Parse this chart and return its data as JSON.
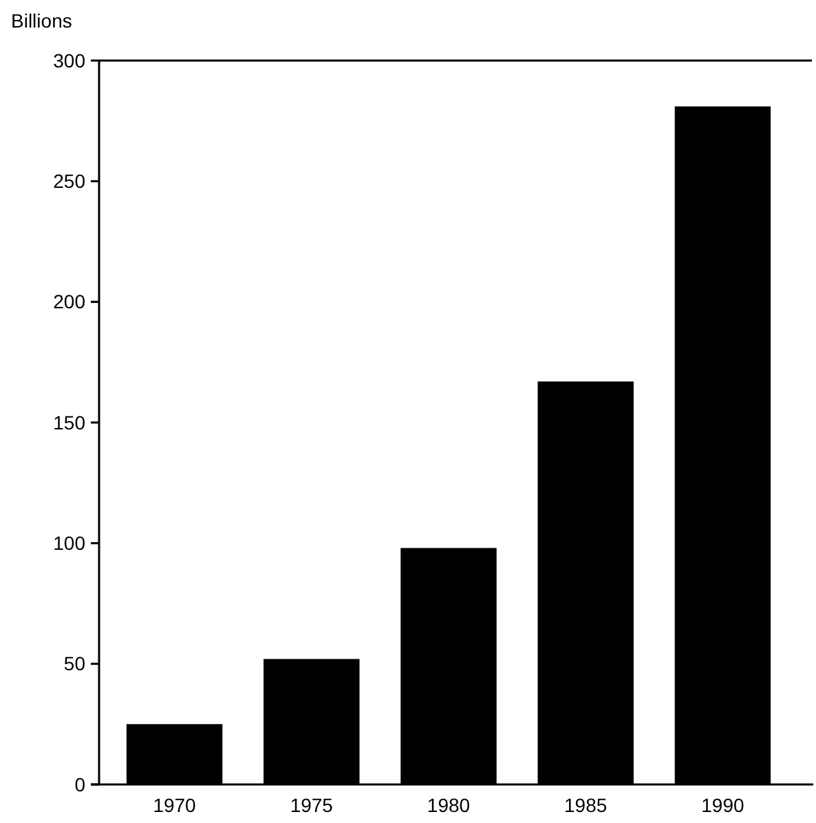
{
  "chart_data": {
    "type": "bar",
    "ylabel": "Billions",
    "categories": [
      "1970",
      "1975",
      "1980",
      "1985",
      "1990"
    ],
    "values": [
      25,
      52,
      98,
      167,
      281
    ],
    "color": "#000000",
    "ylim": [
      0,
      300
    ],
    "yticks": [
      0,
      50,
      100,
      150,
      200,
      250,
      300
    ],
    "grid": false
  }
}
